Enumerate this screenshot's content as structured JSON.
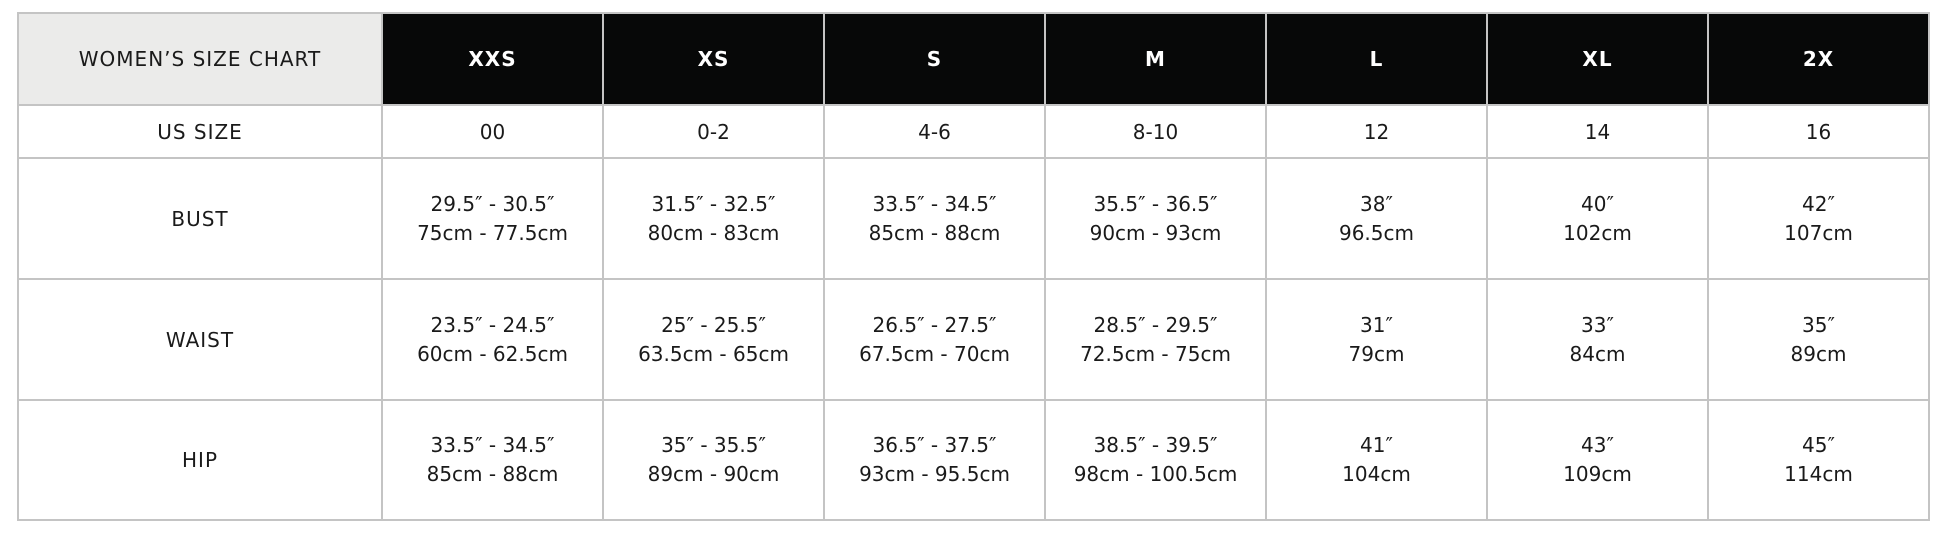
{
  "title": "WOMEN’S SIZE CHART",
  "sizes": [
    "XXS",
    "XS",
    "S",
    "M",
    "L",
    "XL",
    "2X"
  ],
  "us_size": {
    "label": "US SIZE",
    "values": [
      "00",
      "0-2",
      "4-6",
      "8-10",
      "12",
      "14",
      "16"
    ]
  },
  "rows": [
    {
      "label": "BUST",
      "cells": [
        {
          "in": "29.5″ - 30.5″",
          "cm": "75cm - 77.5cm"
        },
        {
          "in": "31.5″ - 32.5″",
          "cm": "80cm - 83cm"
        },
        {
          "in": "33.5″ - 34.5″",
          "cm": "85cm - 88cm"
        },
        {
          "in": "35.5″ - 36.5″",
          "cm": "90cm - 93cm"
        },
        {
          "in": "38″",
          "cm": "96.5cm"
        },
        {
          "in": "40″",
          "cm": "102cm"
        },
        {
          "in": "42″",
          "cm": "107cm"
        }
      ]
    },
    {
      "label": "WAIST",
      "cells": [
        {
          "in": "23.5″ - 24.5″",
          "cm": "60cm - 62.5cm"
        },
        {
          "in": "25″ - 25.5″",
          "cm": "63.5cm - 65cm"
        },
        {
          "in": "26.5″ - 27.5″",
          "cm": "67.5cm - 70cm"
        },
        {
          "in": "28.5″ - 29.5″",
          "cm": "72.5cm - 75cm"
        },
        {
          "in": "31″",
          "cm": "79cm"
        },
        {
          "in": "33″",
          "cm": "84cm"
        },
        {
          "in": "35″",
          "cm": "89cm"
        }
      ]
    },
    {
      "label": "HIP",
      "cells": [
        {
          "in": "33.5″ - 34.5″",
          "cm": "85cm - 88cm"
        },
        {
          "in": "35″ - 35.5″",
          "cm": "89cm - 90cm"
        },
        {
          "in": "36.5″ - 37.5″",
          "cm": "93cm - 95.5cm"
        },
        {
          "in": "38.5″ - 39.5″",
          "cm": "98cm - 100.5cm"
        },
        {
          "in": "41″",
          "cm": "104cm"
        },
        {
          "in": "43″",
          "cm": "109cm"
        },
        {
          "in": "45″",
          "cm": "114cm"
        }
      ]
    }
  ],
  "colors": {
    "header_bg": "#070808",
    "corner_bg": "#ebebea",
    "border": "#c4c4c4"
  }
}
